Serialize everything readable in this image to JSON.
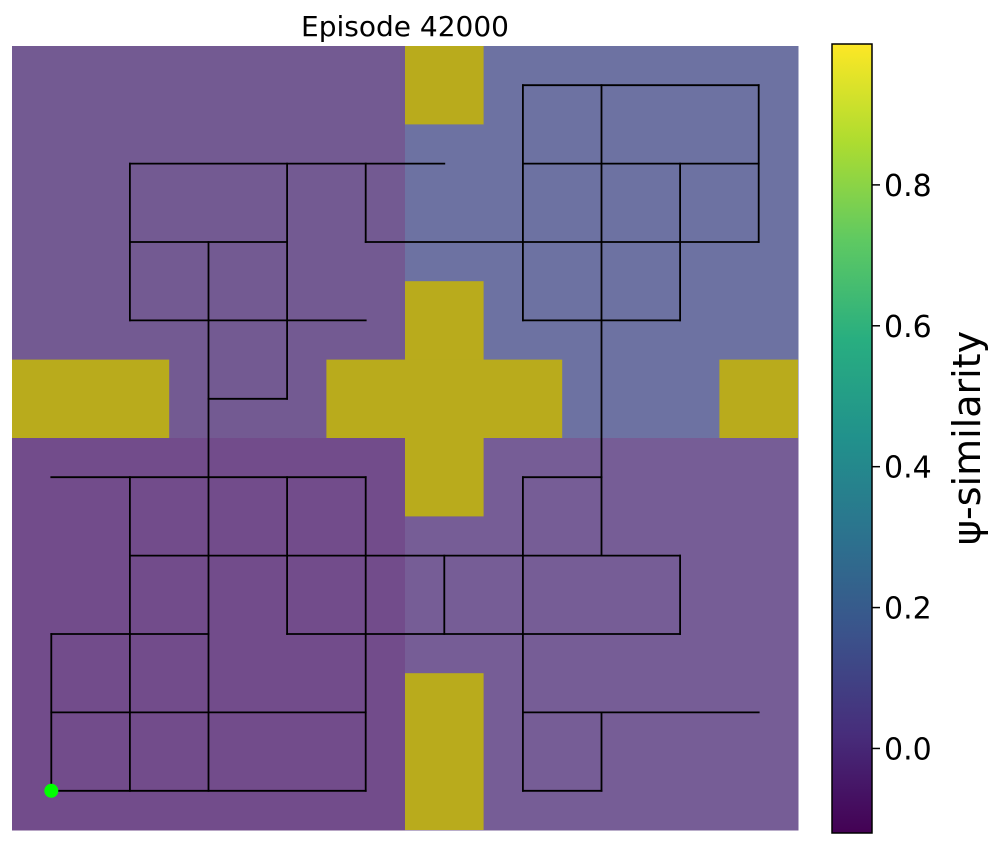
{
  "chart_data": {
    "type": "heatmap",
    "title": "Episode 42000",
    "grid": {
      "cols": 20,
      "rows": 20
    },
    "background_shading": [
      {
        "region": "upper-left",
        "value": -0.02,
        "color": "#735a92"
      },
      {
        "region": "upper-right",
        "value": 0.1,
        "color": "#6d72a2"
      },
      {
        "region": "lower-left",
        "value": -0.04,
        "color": "#724c8b"
      },
      {
        "region": "lower-right",
        "value": -0.02,
        "color": "#765d96"
      }
    ],
    "walls_color": "#b9ab1c",
    "walls": [
      {
        "col": 10,
        "row": 0,
        "w": 2,
        "h": 2
      },
      {
        "col": 10,
        "row": 6,
        "w": 2,
        "h": 6
      },
      {
        "col": 8,
        "row": 8,
        "w": 6,
        "h": 2
      },
      {
        "col": 0,
        "row": 8,
        "w": 4,
        "h": 2
      },
      {
        "col": 18,
        "row": 8,
        "w": 2,
        "h": 2
      },
      {
        "col": 10,
        "row": 16,
        "w": 2,
        "h": 4
      }
    ],
    "start_point": {
      "col": 1,
      "row": 19,
      "color": "#00ff00"
    },
    "path_segments": [
      [
        3,
        3,
        11,
        3
      ],
      [
        3,
        3,
        3,
        7
      ],
      [
        3,
        5,
        7,
        5
      ],
      [
        3,
        7,
        9,
        7
      ],
      [
        5,
        5,
        5,
        19
      ],
      [
        7,
        3,
        7,
        9
      ],
      [
        5,
        9,
        7,
        9
      ],
      [
        9,
        3,
        9,
        5
      ],
      [
        9,
        5,
        19,
        5
      ],
      [
        13,
        1,
        19,
        1
      ],
      [
        13,
        1,
        13,
        7
      ],
      [
        13,
        3,
        19,
        3
      ],
      [
        15,
        1,
        15,
        13
      ],
      [
        17,
        3,
        17,
        7
      ],
      [
        19,
        1,
        19,
        5
      ],
      [
        13,
        7,
        17,
        7
      ],
      [
        1,
        11,
        9,
        11
      ],
      [
        3,
        11,
        3,
        19
      ],
      [
        7,
        11,
        7,
        15
      ],
      [
        9,
        11,
        9,
        19
      ],
      [
        3,
        13,
        17,
        13
      ],
      [
        17,
        13,
        17,
        15
      ],
      [
        11,
        13,
        11,
        15
      ],
      [
        13,
        11,
        15,
        11
      ],
      [
        13,
        11,
        13,
        19
      ],
      [
        1,
        15,
        5,
        15
      ],
      [
        1,
        15,
        1,
        19
      ],
      [
        7,
        15,
        17,
        15
      ],
      [
        1,
        17,
        9,
        17
      ],
      [
        13,
        17,
        19,
        17
      ],
      [
        1,
        19,
        9,
        19
      ],
      [
        13,
        19,
        15,
        19
      ],
      [
        15,
        17,
        15,
        19
      ]
    ],
    "colorbar": {
      "label": "ψ-similarity",
      "min": -0.12,
      "max": 1.0,
      "ticks": [
        "0.0",
        "0.2",
        "0.4",
        "0.6",
        "0.8"
      ],
      "tick_values": [
        0.0,
        0.2,
        0.4,
        0.6,
        0.8
      ],
      "colormap": "viridis"
    }
  }
}
